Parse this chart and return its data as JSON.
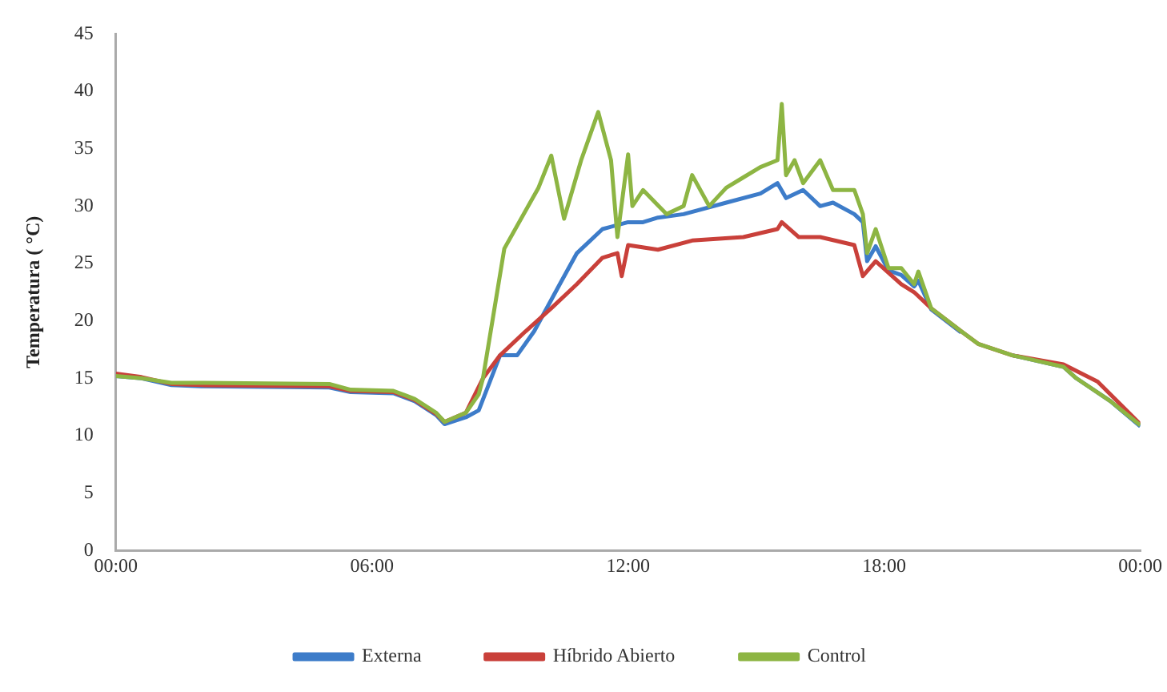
{
  "chart_data": {
    "type": "line",
    "ylabel": "Temperatura ( °C)",
    "xlim": [
      0,
      24
    ],
    "ylim": [
      0,
      45
    ],
    "xticks": [
      {
        "value": 0,
        "label": "00:00"
      },
      {
        "value": 6,
        "label": "06:00"
      },
      {
        "value": 12,
        "label": "12:00"
      },
      {
        "value": 18,
        "label": "18:00"
      },
      {
        "value": 24,
        "label": "00:00"
      }
    ],
    "yticks": [
      0,
      5,
      10,
      15,
      20,
      25,
      30,
      35,
      40,
      45
    ],
    "grid": false,
    "legend": "bottom",
    "marker": "none",
    "line_style": "solid",
    "series": [
      {
        "name": "Externa",
        "color": "#3d7cc9",
        "x": [
          0,
          0.6,
          1.3,
          2,
          5,
          5.5,
          6.5,
          7,
          7.5,
          7.7,
          8.2,
          8.5,
          9,
          9.4,
          9.8,
          10.4,
          10.8,
          11.4,
          12,
          12.35,
          12.7,
          13.3,
          14.3,
          15.1,
          15.5,
          15.7,
          16.1,
          16.5,
          16.8,
          17.3,
          17.5,
          17.6,
          17.8,
          18.1,
          18.4,
          18.7,
          18.8,
          19.1,
          19.8,
          20.2,
          21,
          22.2,
          22.5,
          23.3,
          24
        ],
        "values": [
          15.2,
          15,
          14.4,
          14.3,
          14.2,
          13.8,
          13.7,
          13,
          11.8,
          11,
          11.6,
          12.2,
          17,
          17,
          19.1,
          23.2,
          25.9,
          28,
          28.6,
          28.6,
          29,
          29.3,
          30.3,
          31.1,
          32,
          30.7,
          31.4,
          30,
          30.3,
          29.3,
          28.6,
          25.2,
          26.5,
          24.4,
          24,
          23,
          23.5,
          21,
          19,
          null,
          17,
          16,
          15,
          13,
          10.8
        ]
      },
      {
        "name": "Híbrido Abierto",
        "color": "#c9403a",
        "x": [
          0,
          0.6,
          1.3,
          2,
          5,
          5.5,
          6.5,
          7,
          7.5,
          7.7,
          8.2,
          8.6,
          9,
          9.6,
          10.2,
          10.8,
          11.4,
          11.75,
          11.85,
          12,
          12.7,
          13.5,
          14.7,
          15.5,
          15.6,
          16,
          16.5,
          17.3,
          17.5,
          17.8,
          18.4,
          18.7,
          19.1,
          19.8,
          20.2,
          21,
          22.2,
          23,
          24
        ],
        "values": [
          15.4,
          15.1,
          14.5,
          14.4,
          14.3,
          13.9,
          13.8,
          13.1,
          11.9,
          11.2,
          12,
          15,
          17,
          19.1,
          21.1,
          23.2,
          25.5,
          25.9,
          23.9,
          26.6,
          26.2,
          27,
          27.3,
          28,
          28.6,
          27.3,
          27.3,
          26.6,
          23.9,
          25.2,
          23.2,
          22.5,
          21.1,
          19.1,
          18,
          17,
          16.2,
          14.7,
          11
        ]
      },
      {
        "name": "Control",
        "color": "#8db543",
        "x": [
          0,
          0.6,
          1.3,
          2,
          5,
          5.5,
          6.5,
          7,
          7.5,
          7.7,
          8.2,
          8.5,
          8.6,
          9.1,
          9.9,
          10.2,
          10.5,
          10.9,
          11.3,
          11.6,
          11.75,
          12,
          12.1,
          12.35,
          12.9,
          13.3,
          13.5,
          13.9,
          14.3,
          14.7,
          15.1,
          15.5,
          15.6,
          15.7,
          15.9,
          16.1,
          16.5,
          16.8,
          17.3,
          17.5,
          17.6,
          17.8,
          18.1,
          18.4,
          18.7,
          18.8,
          19.1,
          19.8,
          20.2,
          21,
          22.2,
          22.5,
          23.3,
          24
        ],
        "values": [
          15.2,
          15,
          14.6,
          14.6,
          14.5,
          14,
          13.9,
          13.2,
          12,
          11.2,
          12,
          13.6,
          15,
          26.3,
          31.6,
          34.4,
          28.9,
          34,
          38.2,
          34,
          27.3,
          34.5,
          30,
          31.4,
          29.3,
          30,
          32.7,
          30,
          31.6,
          32.5,
          33.4,
          34,
          38.9,
          32.7,
          34,
          32,
          34,
          31.4,
          31.4,
          29.3,
          25.9,
          28,
          24.6,
          24.6,
          23.2,
          24.3,
          21.1,
          19.1,
          18,
          17,
          16,
          15,
          13,
          10.9
        ]
      }
    ]
  }
}
